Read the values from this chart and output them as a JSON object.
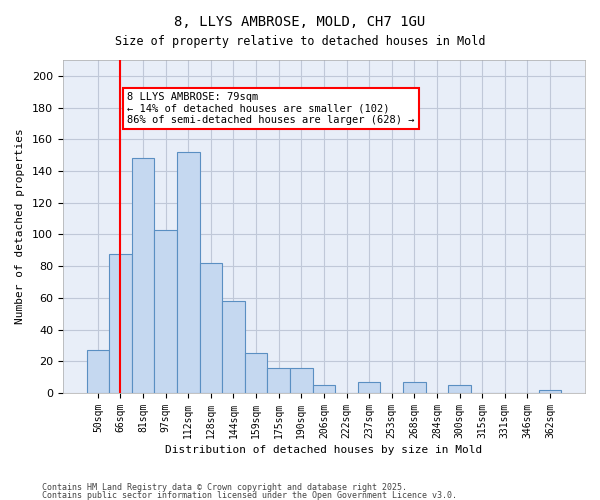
{
  "title_line1": "8, LLYS AMBROSE, MOLD, CH7 1GU",
  "title_line2": "Size of property relative to detached houses in Mold",
  "xlabel": "Distribution of detached houses by size in Mold",
  "ylabel": "Number of detached properties",
  "categories": [
    "50sqm",
    "66sqm",
    "81sqm",
    "97sqm",
    "112sqm",
    "128sqm",
    "144sqm",
    "159sqm",
    "175sqm",
    "190sqm",
    "206sqm",
    "222sqm",
    "237sqm",
    "253sqm",
    "268sqm",
    "284sqm",
    "300sqm",
    "315sqm",
    "331sqm",
    "346sqm",
    "362sqm"
  ],
  "values": [
    27,
    88,
    148,
    103,
    152,
    82,
    58,
    25,
    16,
    16,
    5,
    0,
    7,
    0,
    7,
    0,
    5,
    0,
    0,
    0,
    2
  ],
  "bar_color": "#c5d8f0",
  "bar_edge_color": "#5a8fc2",
  "grid_color": "#c0c8d8",
  "background_color": "#e8eef8",
  "red_line_x": 1,
  "annotation_text": "8 LLYS AMBROSE: 79sqm\n← 14% of detached houses are smaller (102)\n86% of semi-detached houses are larger (628) →",
  "property_size_sqm": 79,
  "footnote_line1": "Contains HM Land Registry data © Crown copyright and database right 2025.",
  "footnote_line2": "Contains public sector information licensed under the Open Government Licence v3.0.",
  "ylim": [
    0,
    210
  ],
  "yticks": [
    0,
    20,
    40,
    60,
    80,
    100,
    120,
    140,
    160,
    180,
    200
  ]
}
